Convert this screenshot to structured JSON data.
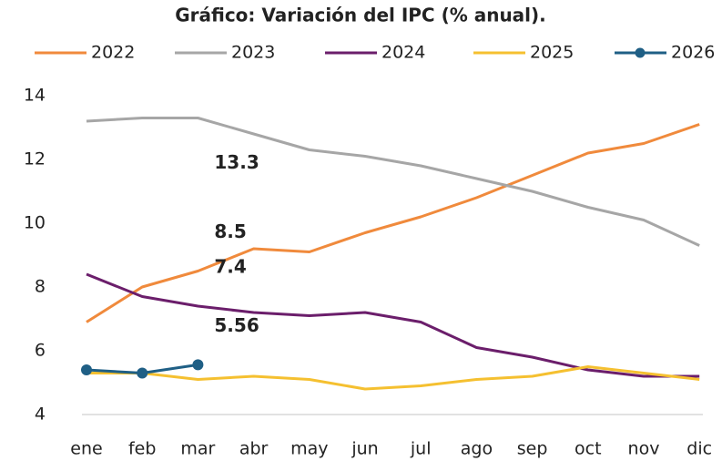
{
  "chart_data": {
    "type": "line",
    "title": "Gráfico: Variación del IPC (% anual).",
    "categories": [
      "ene",
      "feb",
      "mar",
      "abr",
      "may",
      "jun",
      "jul",
      "ago",
      "sep",
      "oct",
      "nov",
      "dic"
    ],
    "ylim": [
      4,
      14
    ],
    "yticks": [
      4,
      6,
      8,
      10,
      12,
      14
    ],
    "grid": false,
    "legend": "top",
    "series": [
      {
        "name": "2022",
        "color": "#f08a3c",
        "values": [
          6.9,
          8.0,
          8.5,
          9.2,
          9.1,
          9.7,
          10.2,
          10.8,
          11.5,
          12.2,
          12.5,
          13.1
        ],
        "value_labels": [
          null,
          null,
          "8.5",
          null,
          null,
          null,
          null,
          null,
          null,
          null,
          null,
          null
        ]
      },
      {
        "name": "2023",
        "color": "#a6a6a6",
        "values": [
          13.2,
          13.3,
          13.3,
          12.8,
          12.3,
          12.1,
          11.8,
          11.4,
          11.0,
          10.5,
          10.1,
          9.3
        ],
        "value_labels": [
          null,
          null,
          "13.3",
          null,
          null,
          null,
          null,
          null,
          null,
          null,
          null,
          null
        ]
      },
      {
        "name": "2024",
        "color": "#6b1e6b",
        "values": [
          8.4,
          7.7,
          7.4,
          7.2,
          7.1,
          7.2,
          6.9,
          6.1,
          5.8,
          5.4,
          5.2,
          5.2
        ],
        "value_labels": [
          null,
          null,
          "7.4",
          null,
          null,
          null,
          null,
          null,
          null,
          null,
          null,
          null
        ]
      },
      {
        "name": "2025",
        "color": "#f5c030",
        "values": [
          5.3,
          5.3,
          5.1,
          5.2,
          5.1,
          4.8,
          4.9,
          5.1,
          5.2,
          5.5,
          5.3,
          5.1
        ],
        "value_labels": [
          null,
          null,
          null,
          null,
          null,
          null,
          null,
          null,
          null,
          null,
          null,
          null
        ]
      },
      {
        "name": "2026",
        "color": "#1f5f85",
        "markers": true,
        "values": [
          5.4,
          5.3,
          5.56,
          null,
          null,
          null,
          null,
          null,
          null,
          null,
          null,
          null
        ],
        "value_labels": [
          null,
          null,
          "5.56",
          null,
          null,
          null,
          null,
          null,
          null,
          null,
          null,
          null
        ]
      }
    ]
  }
}
